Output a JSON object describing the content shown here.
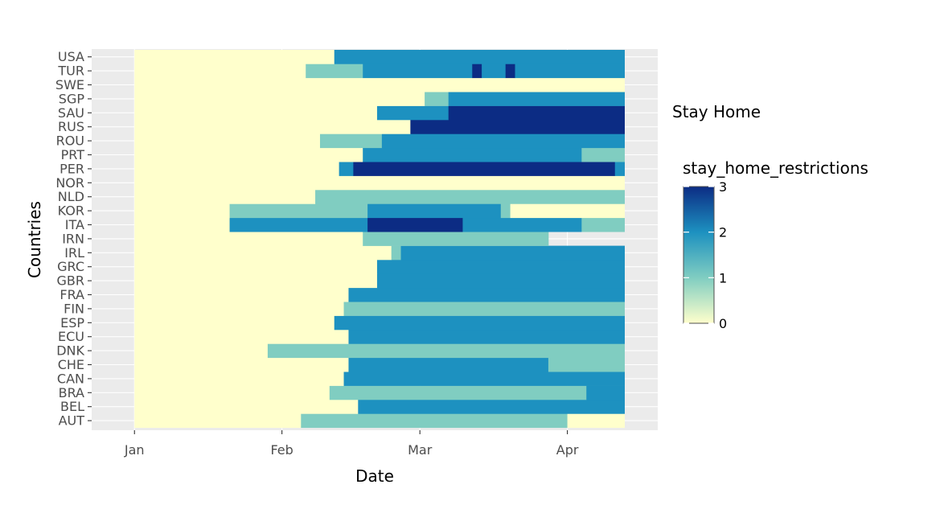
{
  "chart_data": {
    "type": "heatmap",
    "xlabel": "Date",
    "ylabel": "Countries",
    "x_ticks": [
      "Jan",
      "Feb",
      "Mar",
      "Apr"
    ],
    "x_tick_dates": [
      "2020-01-01",
      "2020-02-01",
      "2020-03-01",
      "2020-04-01"
    ],
    "x_range": [
      "2019-12-23",
      "2020-04-20"
    ],
    "date_range": [
      "2020-01-01",
      "2020-04-13"
    ],
    "grid": true,
    "legend_placement": "right",
    "legend": {
      "title": "stay_home_restrictions",
      "ticks": [
        0,
        1,
        2,
        3
      ],
      "colors": [
        "#ffffcc",
        "#80cdc1",
        "#1d91c0",
        "#0c2c84"
      ],
      "range": [
        0,
        3
      ]
    },
    "facet_title": "Stay Home",
    "countries": [
      "AUT",
      "BEL",
      "BRA",
      "CAN",
      "CHE",
      "DNK",
      "ECU",
      "ESP",
      "FIN",
      "FRA",
      "GBR",
      "GRC",
      "IRL",
      "IRN",
      "ITA",
      "KOR",
      "NLD",
      "NOR",
      "PER",
      "PRT",
      "ROU",
      "RUS",
      "SAU",
      "SGP",
      "SWE",
      "TUR",
      "USA"
    ],
    "series": [
      {
        "country": "AUT",
        "segments": [
          {
            "start": "2020-01-01",
            "end": "2020-02-05",
            "value": 0
          },
          {
            "start": "2020-02-05",
            "end": "2020-04-01",
            "value": 1
          },
          {
            "start": "2020-04-01",
            "end": "2020-04-13",
            "value": 0
          }
        ]
      },
      {
        "country": "BEL",
        "segments": [
          {
            "start": "2020-01-01",
            "end": "2020-02-17",
            "value": 0
          },
          {
            "start": "2020-02-17",
            "end": "2020-04-13",
            "value": 2
          }
        ]
      },
      {
        "country": "BRA",
        "segments": [
          {
            "start": "2020-01-01",
            "end": "2020-02-11",
            "value": 0
          },
          {
            "start": "2020-02-11",
            "end": "2020-04-05",
            "value": 1
          },
          {
            "start": "2020-04-05",
            "end": "2020-04-13",
            "value": 2
          }
        ]
      },
      {
        "country": "CAN",
        "segments": [
          {
            "start": "2020-01-01",
            "end": "2020-02-14",
            "value": 0
          },
          {
            "start": "2020-02-14",
            "end": "2020-04-13",
            "value": 2
          }
        ]
      },
      {
        "country": "CHE",
        "segments": [
          {
            "start": "2020-01-01",
            "end": "2020-02-15",
            "value": 0
          },
          {
            "start": "2020-02-15",
            "end": "2020-03-28",
            "value": 2
          },
          {
            "start": "2020-03-28",
            "end": "2020-04-13",
            "value": 1
          }
        ]
      },
      {
        "country": "DNK",
        "segments": [
          {
            "start": "2020-01-01",
            "end": "2020-01-29",
            "value": 0
          },
          {
            "start": "2020-01-29",
            "end": "2020-04-13",
            "value": 1
          }
        ]
      },
      {
        "country": "ECU",
        "segments": [
          {
            "start": "2020-01-01",
            "end": "2020-02-15",
            "value": 0
          },
          {
            "start": "2020-02-15",
            "end": "2020-04-13",
            "value": 2
          }
        ]
      },
      {
        "country": "ESP",
        "segments": [
          {
            "start": "2020-01-01",
            "end": "2020-02-12",
            "value": 0
          },
          {
            "start": "2020-02-12",
            "end": "2020-04-13",
            "value": 2
          }
        ]
      },
      {
        "country": "FIN",
        "segments": [
          {
            "start": "2020-01-01",
            "end": "2020-02-14",
            "value": 0
          },
          {
            "start": "2020-02-14",
            "end": "2020-04-13",
            "value": 1
          }
        ]
      },
      {
        "country": "FRA",
        "segments": [
          {
            "start": "2020-01-01",
            "end": "2020-02-15",
            "value": 0
          },
          {
            "start": "2020-02-15",
            "end": "2020-04-13",
            "value": 2
          }
        ]
      },
      {
        "country": "GBR",
        "segments": [
          {
            "start": "2020-01-01",
            "end": "2020-02-21",
            "value": 0
          },
          {
            "start": "2020-02-21",
            "end": "2020-04-13",
            "value": 2
          }
        ]
      },
      {
        "country": "GRC",
        "segments": [
          {
            "start": "2020-01-01",
            "end": "2020-02-21",
            "value": 0
          },
          {
            "start": "2020-02-21",
            "end": "2020-04-13",
            "value": 2
          }
        ]
      },
      {
        "country": "IRL",
        "segments": [
          {
            "start": "2020-01-01",
            "end": "2020-02-24",
            "value": 0
          },
          {
            "start": "2020-02-24",
            "end": "2020-02-26",
            "value": 1
          },
          {
            "start": "2020-02-26",
            "end": "2020-04-13",
            "value": 2
          }
        ]
      },
      {
        "country": "IRN",
        "segments": [
          {
            "start": "2020-01-01",
            "end": "2020-02-18",
            "value": 0
          },
          {
            "start": "2020-02-18",
            "end": "2020-03-28",
            "value": 1
          }
        ]
      },
      {
        "country": "ITA",
        "segments": [
          {
            "start": "2020-01-01",
            "end": "2020-01-21",
            "value": 0
          },
          {
            "start": "2020-01-21",
            "end": "2020-02-19",
            "value": 2
          },
          {
            "start": "2020-02-19",
            "end": "2020-03-10",
            "value": 3
          },
          {
            "start": "2020-03-10",
            "end": "2020-04-04",
            "value": 2
          },
          {
            "start": "2020-04-04",
            "end": "2020-04-13",
            "value": 1
          }
        ]
      },
      {
        "country": "KOR",
        "segments": [
          {
            "start": "2020-01-01",
            "end": "2020-01-21",
            "value": 0
          },
          {
            "start": "2020-01-21",
            "end": "2020-02-19",
            "value": 1
          },
          {
            "start": "2020-02-19",
            "end": "2020-03-18",
            "value": 2
          },
          {
            "start": "2020-03-18",
            "end": "2020-03-20",
            "value": 1
          },
          {
            "start": "2020-03-20",
            "end": "2020-04-13",
            "value": 0
          }
        ]
      },
      {
        "country": "NLD",
        "segments": [
          {
            "start": "2020-01-01",
            "end": "2020-02-08",
            "value": 0
          },
          {
            "start": "2020-02-08",
            "end": "2020-04-13",
            "value": 1
          }
        ]
      },
      {
        "country": "NOR",
        "segments": [
          {
            "start": "2020-01-01",
            "end": "2020-04-13",
            "value": 0
          }
        ]
      },
      {
        "country": "PER",
        "segments": [
          {
            "start": "2020-01-01",
            "end": "2020-02-13",
            "value": 0
          },
          {
            "start": "2020-02-13",
            "end": "2020-02-16",
            "value": 2
          },
          {
            "start": "2020-02-16",
            "end": "2020-04-11",
            "value": 3
          },
          {
            "start": "2020-04-11",
            "end": "2020-04-13",
            "value": 2
          }
        ]
      },
      {
        "country": "PRT",
        "segments": [
          {
            "start": "2020-01-01",
            "end": "2020-02-18",
            "value": 0
          },
          {
            "start": "2020-02-18",
            "end": "2020-04-04",
            "value": 2
          },
          {
            "start": "2020-04-04",
            "end": "2020-04-13",
            "value": 1
          }
        ]
      },
      {
        "country": "ROU",
        "segments": [
          {
            "start": "2020-01-01",
            "end": "2020-02-09",
            "value": 0
          },
          {
            "start": "2020-02-09",
            "end": "2020-02-22",
            "value": 1
          },
          {
            "start": "2020-02-22",
            "end": "2020-04-13",
            "value": 2
          }
        ]
      },
      {
        "country": "RUS",
        "segments": [
          {
            "start": "2020-01-01",
            "end": "2020-02-28",
            "value": 0
          },
          {
            "start": "2020-02-28",
            "end": "2020-04-13",
            "value": 3
          }
        ]
      },
      {
        "country": "SAU",
        "segments": [
          {
            "start": "2020-01-01",
            "end": "2020-02-21",
            "value": 0
          },
          {
            "start": "2020-02-21",
            "end": "2020-03-07",
            "value": 2
          },
          {
            "start": "2020-03-07",
            "end": "2020-04-13",
            "value": 3
          }
        ]
      },
      {
        "country": "SGP",
        "segments": [
          {
            "start": "2020-01-01",
            "end": "2020-03-02",
            "value": 0
          },
          {
            "start": "2020-03-02",
            "end": "2020-03-07",
            "value": 1
          },
          {
            "start": "2020-03-07",
            "end": "2020-04-13",
            "value": 2
          }
        ]
      },
      {
        "country": "SWE",
        "segments": [
          {
            "start": "2020-01-01",
            "end": "2020-04-13",
            "value": 0
          }
        ]
      },
      {
        "country": "TUR",
        "segments": [
          {
            "start": "2020-01-01",
            "end": "2020-02-06",
            "value": 0
          },
          {
            "start": "2020-02-06",
            "end": "2020-02-18",
            "value": 1
          },
          {
            "start": "2020-02-18",
            "end": "2020-03-12",
            "value": 2
          },
          {
            "start": "2020-03-12",
            "end": "2020-03-14",
            "value": 3
          },
          {
            "start": "2020-03-14",
            "end": "2020-03-19",
            "value": 2
          },
          {
            "start": "2020-03-19",
            "end": "2020-03-21",
            "value": 3
          },
          {
            "start": "2020-03-21",
            "end": "2020-04-13",
            "value": 2
          }
        ]
      },
      {
        "country": "USA",
        "segments": [
          {
            "start": "2020-01-01",
            "end": "2020-02-12",
            "value": 0
          },
          {
            "start": "2020-02-12",
            "end": "2020-04-13",
            "value": 2
          }
        ]
      }
    ]
  }
}
